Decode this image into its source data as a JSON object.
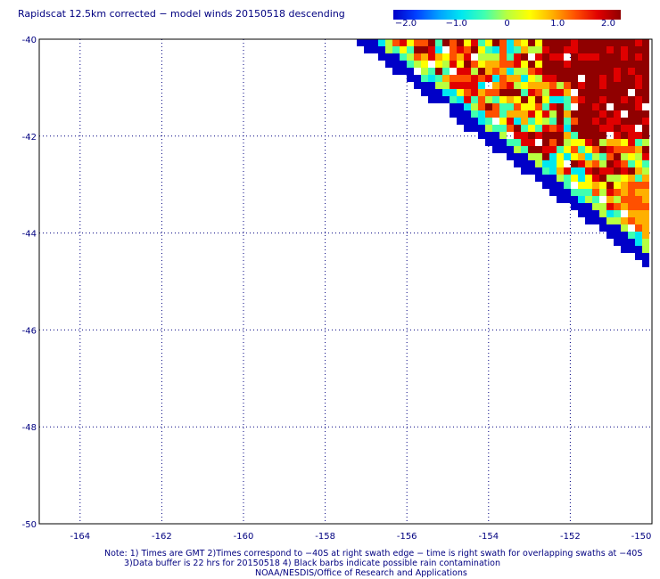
{
  "title": "Rapidscat 12.5km corrected − model winds 20150518 descending",
  "colorbar": {
    "min": -2.0,
    "max": 2.0,
    "tick_labels": [
      "−2.0",
      "−1.0",
      "0",
      "1.0",
      "2.0"
    ],
    "colors": [
      "#0000c8",
      "#0040ff",
      "#00a0ff",
      "#00e8f0",
      "#40ffb0",
      "#b8ff40",
      "#ffff00",
      "#ffb000",
      "#ff5000",
      "#e00000",
      "#900000"
    ]
  },
  "map": {
    "lat_range": [
      -50,
      -40
    ],
    "lon_range": [
      -165,
      -150
    ],
    "lat_labels": [
      "-40",
      "-42",
      "-44",
      "-46",
      "-48",
      "-50"
    ],
    "lon_labels": [
      "-164",
      "-162",
      "-160",
      "-158",
      "-156",
      "-154",
      "-152",
      "-150"
    ]
  },
  "notes": {
    "line1": "Note: 1) Times are GMT 2)Times correspond to −40S at right swath edge − time is right swath for overlapping swaths at −40S",
    "line2": "3)Data buffer is 22 hrs for 20150518 4) Black barbs indicate possible rain contamination",
    "line3": "NOAA/NESDIS/Office of Research and Applications"
  }
}
